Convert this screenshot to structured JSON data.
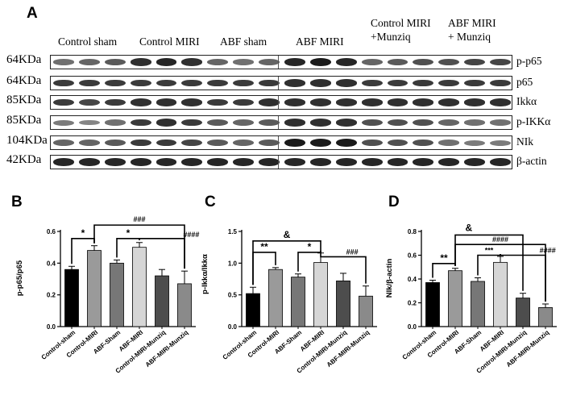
{
  "panel_a": {
    "letter": "A",
    "groups": [
      "Control sham",
      "Control MIRI",
      "ABF sham",
      "ABF MIRI",
      "Control MIRI\n+Munziq",
      "ABF MIRI\n+ Munziq"
    ],
    "rows": [
      {
        "kda": "64KDa",
        "protein": "p-p65",
        "intensity": [
          0.55,
          0.6,
          0.65,
          0.85,
          0.9,
          0.85,
          0.6,
          0.55,
          0.6,
          0.9,
          0.95,
          0.9,
          0.6,
          0.65,
          0.7,
          0.7,
          0.75,
          0.75
        ]
      },
      {
        "kda": "64KDa",
        "protein": "p65",
        "intensity": [
          0.8,
          0.8,
          0.8,
          0.8,
          0.8,
          0.8,
          0.8,
          0.8,
          0.8,
          0.85,
          0.85,
          0.85,
          0.8,
          0.8,
          0.8,
          0.8,
          0.8,
          0.8
        ]
      },
      {
        "kda": "85KDa",
        "protein": "Ikkα",
        "intensity": [
          0.8,
          0.75,
          0.8,
          0.85,
          0.85,
          0.85,
          0.8,
          0.8,
          0.85,
          0.85,
          0.85,
          0.85,
          0.85,
          0.85,
          0.85,
          0.85,
          0.85,
          0.85
        ]
      },
      {
        "kda": "85KDa",
        "protein": "p-IKKα",
        "intensity": [
          0.5,
          0.45,
          0.55,
          0.8,
          0.85,
          0.8,
          0.65,
          0.6,
          0.65,
          0.85,
          0.85,
          0.85,
          0.7,
          0.7,
          0.7,
          0.6,
          0.55,
          0.55
        ]
      },
      {
        "kda": "104KDa",
        "protein": "NIk",
        "intensity": [
          0.6,
          0.6,
          0.65,
          0.8,
          0.8,
          0.75,
          0.65,
          0.6,
          0.65,
          0.95,
          0.95,
          0.95,
          0.7,
          0.7,
          0.7,
          0.55,
          0.5,
          0.5
        ]
      },
      {
        "kda": "42KDa",
        "protein": "β-actin",
        "intensity": [
          0.9,
          0.9,
          0.9,
          0.9,
          0.9,
          0.9,
          0.9,
          0.9,
          0.9,
          0.9,
          0.9,
          0.9,
          0.9,
          0.9,
          0.9,
          0.9,
          0.9,
          0.9
        ]
      }
    ]
  },
  "chart_data": [
    {
      "letter": "B",
      "type": "bar",
      "ylabel": "p-p65/p65",
      "ylim": [
        0.0,
        0.6
      ],
      "yticks": [
        "0.0",
        "0.2",
        "0.4",
        "0.6"
      ],
      "categories": [
        "Control-sham",
        "Control-MIRI",
        "ABF-Sham",
        "ABF-MIRI",
        "Control-MIRI-Munziq",
        "ABF-MIRI-Munziq"
      ],
      "values": [
        0.36,
        0.48,
        0.4,
        0.5,
        0.32,
        0.27
      ],
      "errors": [
        0.02,
        0.03,
        0.02,
        0.03,
        0.04,
        0.08
      ],
      "colors": [
        "#000000",
        "#9a9a9a",
        "#777777",
        "#d6d6d6",
        "#4d4d4d",
        "#8a8a8a"
      ],
      "annotations": [
        "*",
        "*",
        "###",
        "####"
      ]
    },
    {
      "letter": "C",
      "type": "bar",
      "ylabel": "p-Ikkα/Ikkα",
      "ylim": [
        0.0,
        1.5
      ],
      "yticks": [
        "0.0",
        "0.5",
        "1.0",
        "1.5"
      ],
      "categories": [
        "Control-sham",
        "Control-MIRI",
        "ABF-Sham",
        "ABF-MIRI",
        "Control-MIRI-Munziq",
        "ABF-MIRI-Munziq"
      ],
      "values": [
        0.52,
        0.9,
        0.78,
        1.01,
        0.72,
        0.48
      ],
      "errors": [
        0.1,
        0.03,
        0.05,
        0.15,
        0.12,
        0.16
      ],
      "colors": [
        "#000000",
        "#9a9a9a",
        "#777777",
        "#d6d6d6",
        "#4d4d4d",
        "#8a8a8a"
      ],
      "annotations": [
        "**",
        "&",
        "*",
        "###"
      ]
    },
    {
      "letter": "D",
      "type": "bar",
      "ylabel": "NIk/β-actin",
      "ylim": [
        0.0,
        0.8
      ],
      "yticks": [
        "0.0",
        "0.2",
        "0.4",
        "0.6",
        "0.8"
      ],
      "categories": [
        "Control-sham",
        "Control-MIRI",
        "ABF-Sham",
        "ABF-MIRI",
        "Control-MIRI-Munziq",
        "ABF-MIRI-Munziq"
      ],
      "values": [
        0.37,
        0.47,
        0.38,
        0.54,
        0.24,
        0.16
      ],
      "errors": [
        0.02,
        0.02,
        0.03,
        0.05,
        0.04,
        0.03
      ],
      "colors": [
        "#000000",
        "#9a9a9a",
        "#777777",
        "#d6d6d6",
        "#4d4d4d",
        "#8a8a8a"
      ],
      "annotations": [
        "**",
        "&",
        "####",
        "***",
        "####"
      ]
    }
  ]
}
